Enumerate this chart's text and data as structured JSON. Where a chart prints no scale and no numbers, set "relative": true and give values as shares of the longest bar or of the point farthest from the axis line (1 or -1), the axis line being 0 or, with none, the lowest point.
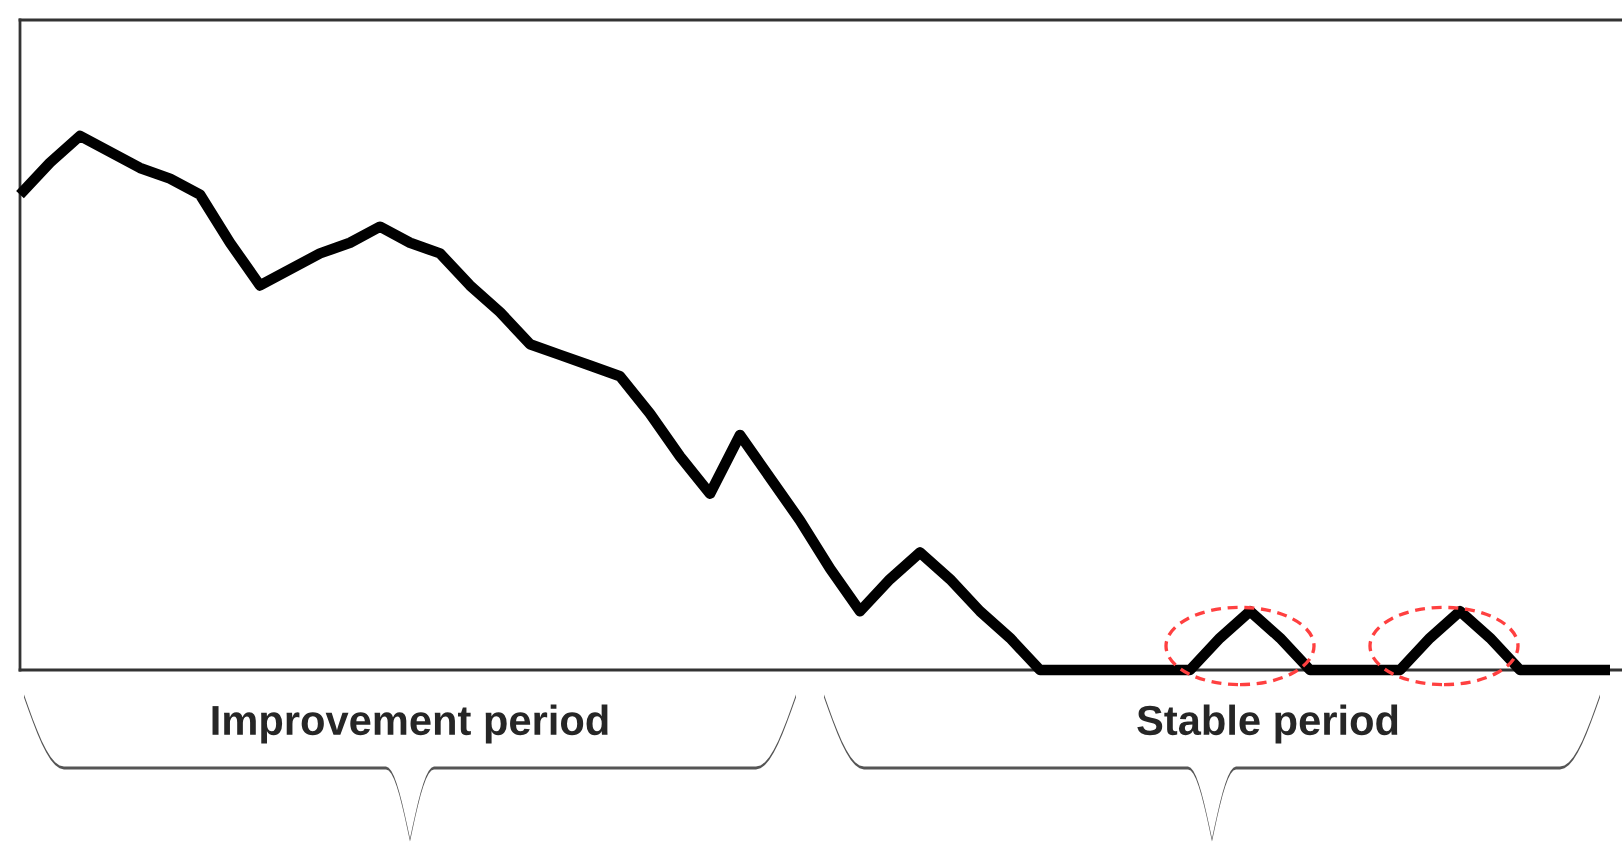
{
  "chart_data": {
    "type": "line",
    "relative": true,
    "line_style": "solid",
    "categories": [
      null,
      null,
      null,
      null,
      null,
      null,
      null,
      null,
      null,
      null,
      null,
      null,
      null,
      null,
      null,
      null,
      null,
      null,
      null,
      null,
      null,
      null,
      null,
      null,
      null,
      null,
      null,
      null,
      null,
      null,
      null,
      null,
      null,
      null,
      null,
      null,
      null,
      null,
      null,
      null,
      null,
      null,
      null,
      null,
      null,
      null,
      null,
      null,
      null,
      null,
      null,
      null,
      null,
      null
    ],
    "series": [
      {
        "color": "#000000",
        "values": [
          0.89,
          0.95,
          1,
          0.97,
          0.94,
          0.92,
          0.89,
          0.8,
          0.72,
          0.75,
          0.78,
          0.8,
          0.83,
          0.8,
          0.78,
          0.72,
          0.67,
          0.61,
          0.59,
          0.57,
          0.55,
          0.48,
          0.4,
          0.33,
          0.44,
          0.36,
          0.28,
          0.19,
          0.11,
          0.17,
          0.22,
          0.17,
          0.11,
          0.06,
          0,
          0,
          0,
          0,
          0,
          0,
          0.06,
          0.11,
          0.06,
          0,
          0,
          0,
          0,
          0.06,
          0.11,
          0.06,
          0,
          0,
          0,
          0
        ]
      }
    ],
    "annotations": [
      "Improvement period",
      "Stable period"
    ]
  }
}
